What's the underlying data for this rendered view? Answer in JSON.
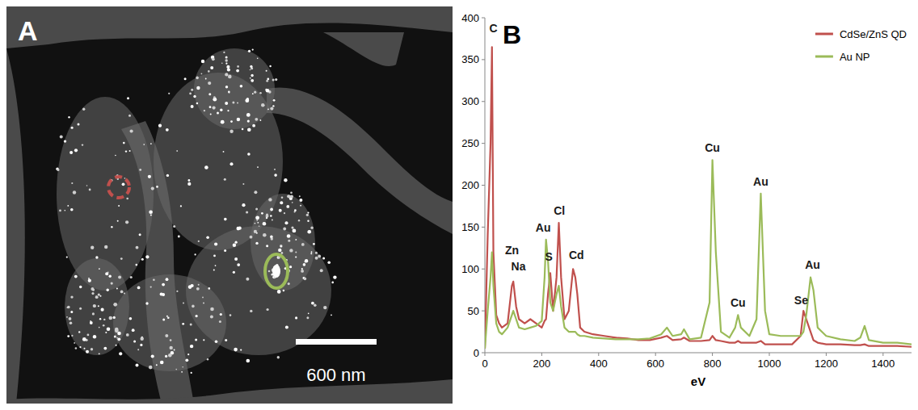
{
  "figure": {
    "panel_labels": [
      "A",
      "B"
    ],
    "scale_bar": "600 nm"
  },
  "chart_data": {
    "type": "line",
    "x_label": "eV",
    "x": [
      0,
      10,
      20,
      25,
      30,
      40,
      50,
      60,
      80,
      95,
      100,
      110,
      120,
      140,
      160,
      180,
      200,
      210,
      215,
      222,
      230,
      240,
      252,
      260,
      268,
      280,
      295,
      310,
      318,
      325,
      335,
      350,
      380,
      420,
      460,
      500,
      540,
      580,
      620,
      640,
      660,
      690,
      700,
      720,
      760,
      790,
      800,
      812,
      830,
      860,
      880,
      890,
      900,
      930,
      955,
      970,
      985,
      1000,
      1040,
      1080,
      1110,
      1120,
      1130,
      1145,
      1155,
      1170,
      1200,
      1250,
      1300,
      1320,
      1335,
      1350,
      1400,
      1450,
      1500
    ],
    "series": [
      {
        "name": "CdSe/ZnS QD",
        "color": "#c0504d",
        "values": [
          5,
          140,
          250,
          365,
          120,
          45,
          35,
          30,
          35,
          80,
          85,
          55,
          40,
          35,
          40,
          35,
          30,
          38,
          40,
          70,
          95,
          50,
          90,
          155,
          90,
          40,
          50,
          100,
          90,
          70,
          30,
          25,
          22,
          20,
          18,
          17,
          15,
          15,
          18,
          20,
          15,
          16,
          18,
          14,
          14,
          15,
          20,
          15,
          14,
          12,
          12,
          14,
          12,
          12,
          12,
          14,
          10,
          10,
          10,
          10,
          20,
          50,
          40,
          25,
          15,
          12,
          10,
          10,
          9,
          9,
          10,
          8,
          8,
          8,
          7
        ]
      },
      {
        "name": "Au NP",
        "color": "#9bbb59",
        "values": [
          5,
          50,
          90,
          120,
          80,
          35,
          25,
          22,
          30,
          45,
          50,
          40,
          30,
          28,
          30,
          32,
          38,
          90,
          135,
          110,
          60,
          50,
          70,
          80,
          55,
          30,
          25,
          25,
          25,
          22,
          20,
          20,
          18,
          17,
          16,
          16,
          16,
          17,
          22,
          30,
          20,
          22,
          28,
          16,
          18,
          60,
          230,
          120,
          25,
          18,
          30,
          45,
          30,
          20,
          40,
          190,
          50,
          22,
          20,
          20,
          20,
          25,
          45,
          90,
          75,
          30,
          20,
          16,
          14,
          18,
          32,
          15,
          12,
          12,
          10
        ]
      }
    ],
    "xlim": [
      0,
      1500
    ],
    "ylim": [
      0,
      400
    ],
    "xticks": [
      0,
      200,
      400,
      600,
      800,
      1000,
      1200,
      1400
    ],
    "yticks": [
      0,
      50,
      100,
      150,
      200,
      250,
      300,
      350,
      400
    ],
    "grid": false,
    "legend": "top-right",
    "annotations": [
      {
        "text": "C",
        "x": 30,
        "y": 383
      },
      {
        "text": "Zn",
        "x": 95,
        "y": 118
      },
      {
        "text": "Na",
        "x": 118,
        "y": 98
      },
      {
        "text": "Au",
        "x": 205,
        "y": 145
      },
      {
        "text": "S",
        "x": 225,
        "y": 110
      },
      {
        "text": "Cl",
        "x": 262,
        "y": 165
      },
      {
        "text": "Cd",
        "x": 322,
        "y": 112
      },
      {
        "text": "Cu",
        "x": 800,
        "y": 240
      },
      {
        "text": "Cu",
        "x": 890,
        "y": 55
      },
      {
        "text": "Au",
        "x": 970,
        "y": 200
      },
      {
        "text": "Se",
        "x": 1112,
        "y": 58
      },
      {
        "text": "Au",
        "x": 1152,
        "y": 100
      }
    ]
  }
}
